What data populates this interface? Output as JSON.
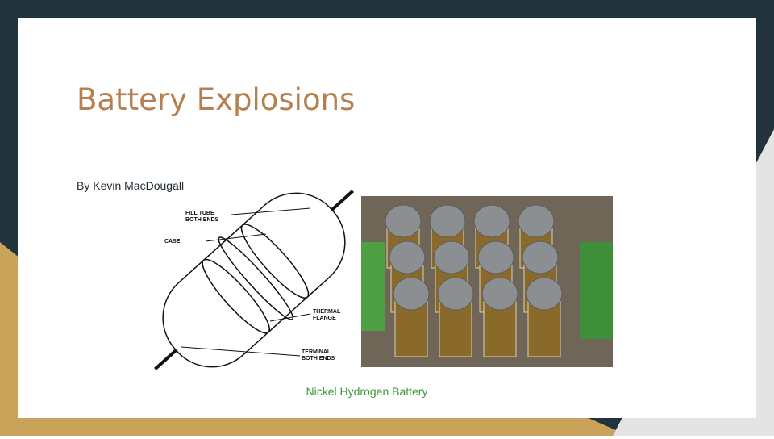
{
  "slide": {
    "title": "Battery Explosions",
    "subtitle": "By Kevin MacDougall",
    "diagram": {
      "labels": [
        [
          "FILL TUBE",
          "BOTH ENDS"
        ],
        [
          "CASE"
        ],
        [
          "THERMAL",
          "FLANGE"
        ],
        [
          "TERMINAL",
          "BOTH ENDS"
        ]
      ]
    },
    "caption": "Nickel Hydrogen Battery"
  }
}
